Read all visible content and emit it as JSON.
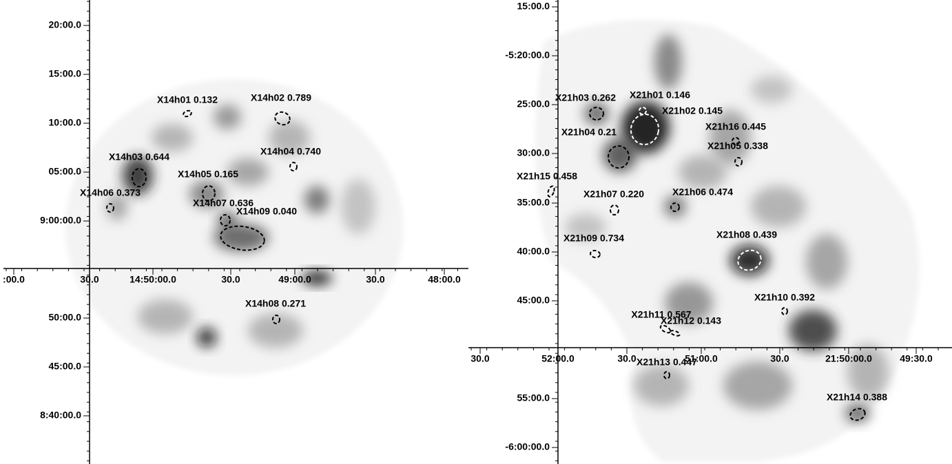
{
  "panels": [
    {
      "y_axis_labels": [
        "20:00.0",
        "15:00.0",
        "10:00.0",
        "05:00.0",
        "9:00:00.0",
        "50:00.0",
        "45:00.0",
        "8:40:00.0"
      ],
      "x_axis_labels": [
        ":00.0",
        "30.0",
        "14:50:00.0",
        "30.0",
        "49:00.0",
        "30.0",
        "48:00.0"
      ],
      "sources": [
        "X14h01 0.132",
        "X14h02 0.789",
        "X14h03 0.644",
        "X14h04 0.740",
        "X14h05 0.165",
        "X14h06 0.373",
        "X14h07 0.636",
        "X14h09 0.040",
        "X14h08 0.271"
      ]
    },
    {
      "y_axis_labels": [
        "15:00.0",
        "-5:20:00.0",
        "25:00.0",
        "30:00.0",
        "35:00.0",
        "40:00.0",
        "45:00.0",
        "55:00.0",
        "-6:00:00.0"
      ],
      "x_axis_labels": [
        "30.0",
        "52:00.0",
        "30.0",
        "51:00.0",
        "30.0",
        "21:50:00.0",
        "49:30.0"
      ],
      "sources": [
        "X21h03 0.262",
        "X21h01 0.146",
        "X21h02 0.145",
        "X21h04 0.21",
        "X21h16 0.445",
        "X21h05 0.338",
        "X21h15 0.458",
        "X21h07 0.220",
        "X21h06 0.474",
        "X21h09 0.734",
        "X21h08 0.439",
        "X21h10 0.392",
        "X21h11 0.567",
        "X21h12 0.143",
        "X21h13 0.447",
        "X21h14 0.388"
      ]
    }
  ]
}
